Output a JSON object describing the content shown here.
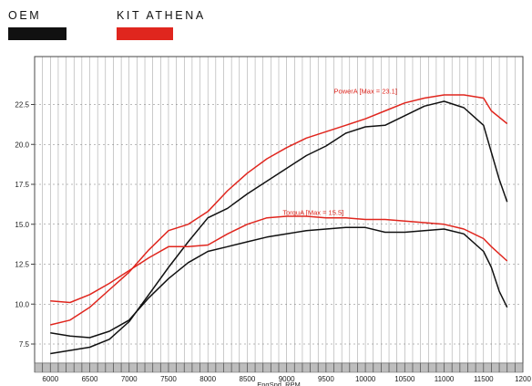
{
  "legend": {
    "items": [
      {
        "label": "OEM",
        "color": "#111111"
      },
      {
        "label": "KIT ATHENA",
        "color": "#e0261e"
      }
    ]
  },
  "chart_data": {
    "type": "line",
    "xlabel": "EngSpd_RPM",
    "ylabel": "",
    "xlim": [
      5800,
      12000
    ],
    "ylim": [
      6.3,
      25.5
    ],
    "x_ticks": [
      "6000",
      "6500",
      "7000",
      "7500",
      "8000",
      "8500",
      "9000",
      "9500",
      "10000",
      "10500",
      "11000",
      "11500",
      "1200"
    ],
    "y_ticks": [
      "7.5",
      "10.0",
      "12.5",
      "15.0",
      "17.5",
      "20.0",
      "22.5"
    ],
    "grid": true,
    "annotations": [
      {
        "text": "PowerA [Max = 23.1]",
        "x": 9600,
        "y": 23.2,
        "color": "#e0261e"
      },
      {
        "text": "TorquA [Max = 15.5]",
        "x": 8950,
        "y": 15.6,
        "color": "#e0261e"
      }
    ],
    "series": [
      {
        "group": "KIT ATHENA",
        "color": "#e0261e",
        "x": [
          6000,
          6250,
          6500,
          6750,
          7000,
          7250,
          7500,
          7750,
          8000,
          8250,
          8500,
          8750,
          9000,
          9250,
          9500,
          9750,
          10000,
          10250,
          10500,
          10750,
          11000,
          11250,
          11500,
          11600,
          11800
        ],
        "y": [
          8.7,
          9.0,
          9.8,
          10.9,
          12.0,
          13.4,
          14.6,
          15.0,
          15.8,
          17.1,
          18.2,
          19.1,
          19.8,
          20.4,
          20.8,
          21.2,
          21.6,
          22.1,
          22.6,
          22.9,
          23.1,
          23.1,
          22.9,
          22.1,
          21.3
        ]
      },
      {
        "group": "OEM",
        "color": "#111111",
        "x": [
          6000,
          6250,
          6500,
          6750,
          7000,
          7250,
          7500,
          7750,
          8000,
          8250,
          8500,
          8750,
          9000,
          9250,
          9500,
          9750,
          10000,
          10250,
          10500,
          10750,
          11000,
          11250,
          11500,
          11600,
          11700,
          11800
        ],
        "y": [
          6.9,
          7.1,
          7.3,
          7.8,
          8.9,
          10.6,
          12.3,
          13.9,
          15.4,
          16.0,
          16.9,
          17.7,
          18.5,
          19.3,
          19.9,
          20.7,
          21.1,
          21.2,
          21.8,
          22.4,
          22.7,
          22.3,
          21.2,
          19.5,
          17.8,
          16.4
        ]
      },
      {
        "group": "KIT ATHENA",
        "color": "#e0261e",
        "x": [
          6000,
          6250,
          6500,
          6750,
          7000,
          7250,
          7500,
          7750,
          8000,
          8250,
          8500,
          8750,
          9000,
          9250,
          9500,
          9750,
          10000,
          10250,
          10500,
          10750,
          11000,
          11250,
          11500,
          11600,
          11800
        ],
        "y": [
          10.2,
          10.1,
          10.6,
          11.3,
          12.1,
          12.9,
          13.6,
          13.6,
          13.7,
          14.4,
          15.0,
          15.4,
          15.5,
          15.5,
          15.4,
          15.4,
          15.3,
          15.3,
          15.2,
          15.1,
          15.0,
          14.7,
          14.1,
          13.6,
          12.7
        ]
      },
      {
        "group": "OEM",
        "color": "#111111",
        "x": [
          6000,
          6250,
          6500,
          6750,
          7000,
          7250,
          7500,
          7750,
          8000,
          8250,
          8500,
          8750,
          9000,
          9250,
          9500,
          9750,
          10000,
          10250,
          10500,
          10750,
          11000,
          11250,
          11500,
          11600,
          11700,
          11800
        ],
        "y": [
          8.2,
          8.0,
          7.9,
          8.3,
          9.0,
          10.4,
          11.6,
          12.6,
          13.3,
          13.6,
          13.9,
          14.2,
          14.4,
          14.6,
          14.7,
          14.8,
          14.8,
          14.5,
          14.5,
          14.6,
          14.7,
          14.4,
          13.3,
          12.3,
          10.8,
          9.8
        ]
      }
    ]
  }
}
